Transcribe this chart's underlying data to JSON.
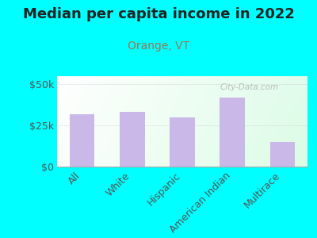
{
  "title": "Median per capita income in 2022",
  "subtitle": "Orange, VT",
  "categories": [
    "All",
    "White",
    "Hispanic",
    "American Indian",
    "Multirace"
  ],
  "values": [
    32000,
    33500,
    30000,
    42000,
    15000
  ],
  "bar_color": "#c9b8e8",
  "background_color": "#00FFFF",
  "title_fontsize": 13,
  "subtitle_fontsize": 10,
  "subtitle_color": "#997755",
  "yticks": [
    0,
    25000,
    50000
  ],
  "ytick_labels": [
    "$0",
    "$25k",
    "$50k"
  ],
  "ylim": [
    0,
    55000
  ],
  "watermark": "City-Data.com",
  "bar_width": 0.5,
  "tick_fontsize": 9,
  "xtick_fontsize": 9
}
